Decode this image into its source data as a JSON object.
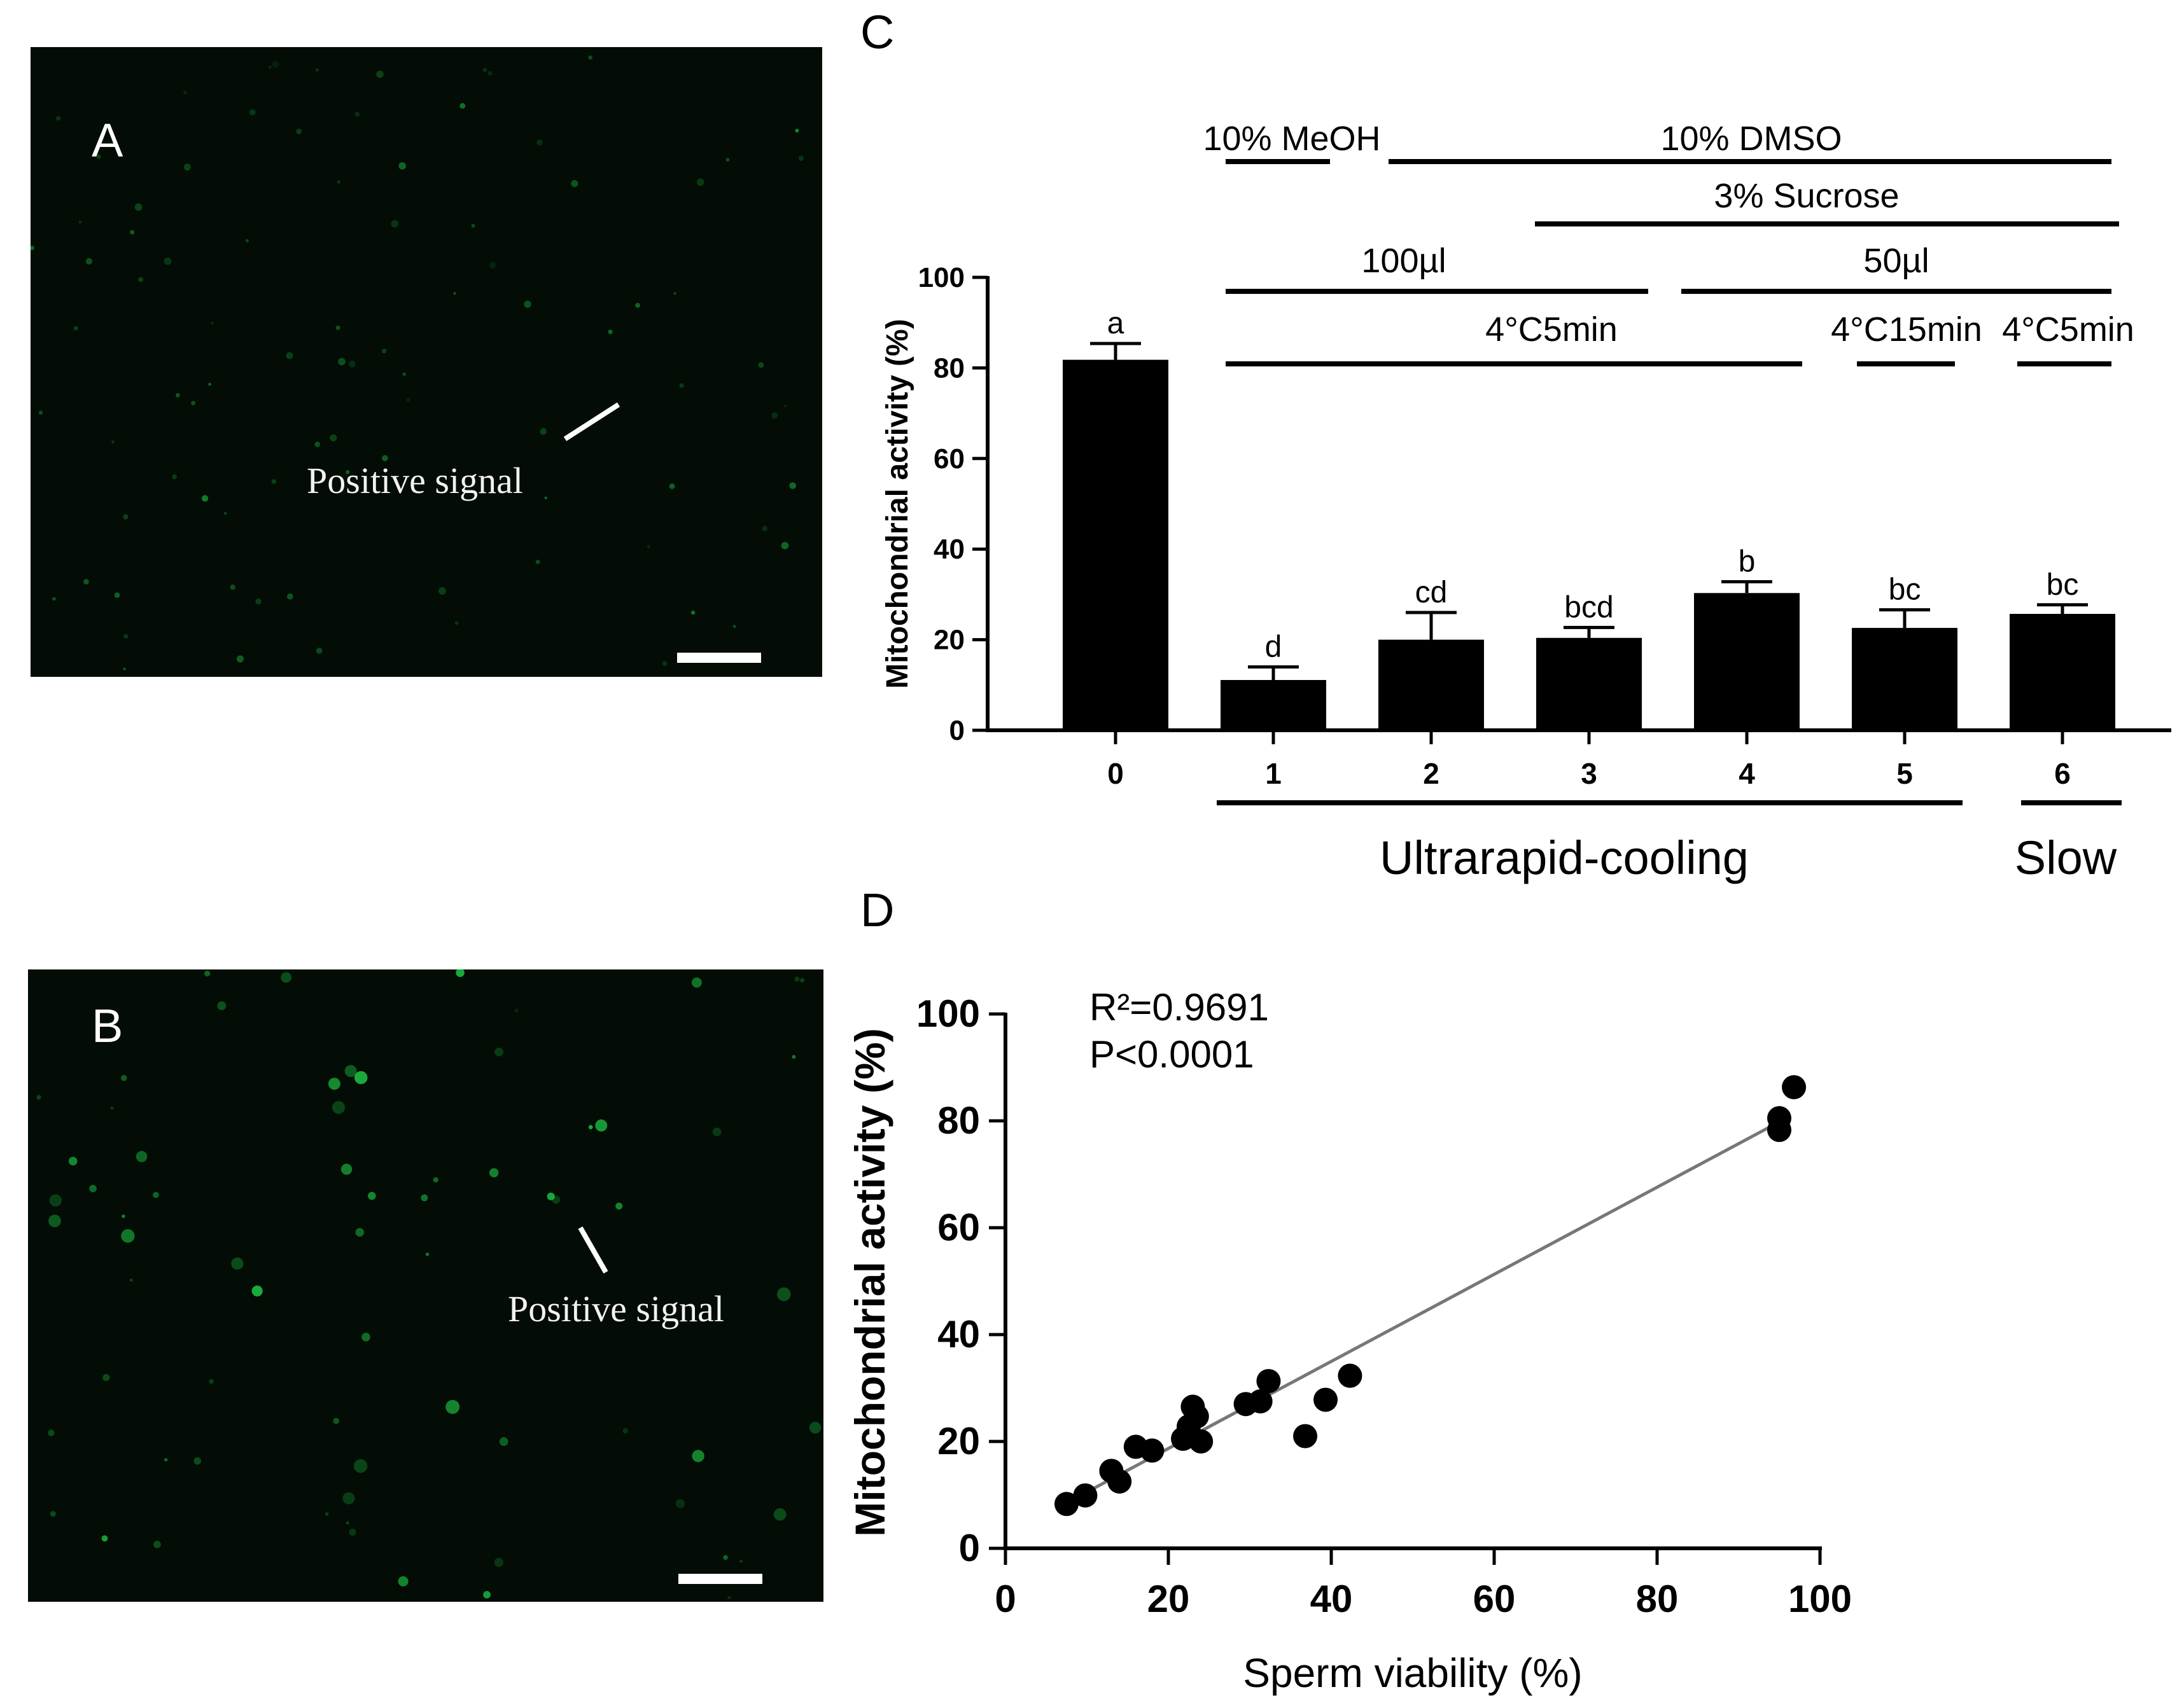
{
  "panel_a": {
    "letter": "A",
    "label": "Positive signal"
  },
  "panel_b": {
    "letter": "B",
    "label": "Positive signal"
  },
  "chart_data": [
    {
      "panel": "C",
      "type": "bar",
      "ylabel": "Mitochondrial activity (%)",
      "ylim": [
        0,
        100
      ],
      "yticks": [
        0,
        20,
        40,
        60,
        80,
        100
      ],
      "categories": [
        "0",
        "1",
        "2",
        "3",
        "4",
        "5",
        "6"
      ],
      "values": [
        81.8,
        11.1,
        20.0,
        20.4,
        30.3,
        22.6,
        25.7
      ],
      "errors": [
        3.6,
        2.9,
        6.0,
        2.3,
        2.5,
        4.0,
        2.0
      ],
      "letters": [
        "a",
        "d",
        "cd",
        "bcd",
        "b",
        "bc",
        "bc"
      ],
      "bar_color": "#000000",
      "annotations": [
        {
          "text": "10% MeOH",
          "from": 1,
          "to": 1
        },
        {
          "text": "10% DMSO",
          "from": 2,
          "to": 6
        },
        {
          "text": "3% Sucrose",
          "from": 3,
          "to": 6
        },
        {
          "text": "100µl",
          "from": 1,
          "to": 3
        },
        {
          "text": "50µl",
          "from": 4,
          "to": 6
        },
        {
          "text": "4°C5min",
          "from": 1,
          "to": 4
        },
        {
          "text": "4°C15min",
          "from": 5,
          "to": 5
        },
        {
          "text": "4°C5min",
          "from": 6,
          "to": 6
        }
      ],
      "groups": [
        {
          "text": "Ultrarapid-cooling",
          "from": 1,
          "to": 5
        },
        {
          "text": "Slow",
          "from": 6,
          "to": 6
        }
      ]
    },
    {
      "panel": "D",
      "type": "scatter",
      "xlabel": "Sperm viability (%)",
      "ylabel": "Mitochondrial activity (%)",
      "xlim": [
        0,
        100
      ],
      "ylim": [
        0,
        100
      ],
      "xticks": [
        0,
        20,
        40,
        60,
        80,
        100
      ],
      "yticks": [
        0,
        20,
        40,
        60,
        80,
        100
      ],
      "annotation_lines": [
        "R²=0.9691",
        "P<0.0001"
      ],
      "points": [
        [
          7.5,
          8.3
        ],
        [
          9.8,
          9.9
        ],
        [
          13.0,
          14.5
        ],
        [
          14.0,
          12.5
        ],
        [
          16.0,
          19.0
        ],
        [
          18.0,
          18.3
        ],
        [
          21.8,
          20.5
        ],
        [
          22.5,
          22.8
        ],
        [
          23.0,
          26.5
        ],
        [
          23.5,
          24.7
        ],
        [
          24.0,
          20.0
        ],
        [
          29.5,
          27.0
        ],
        [
          31.3,
          27.5
        ],
        [
          32.3,
          31.3
        ],
        [
          36.8,
          21.0
        ],
        [
          39.3,
          27.8
        ],
        [
          42.3,
          32.3
        ],
        [
          95.0,
          80.5
        ],
        [
          95.0,
          78.3
        ],
        [
          96.8,
          86.3
        ]
      ],
      "fit": {
        "x": [
          7.5,
          95.0
        ],
        "y": [
          8.5,
          79.8
        ]
      }
    }
  ]
}
